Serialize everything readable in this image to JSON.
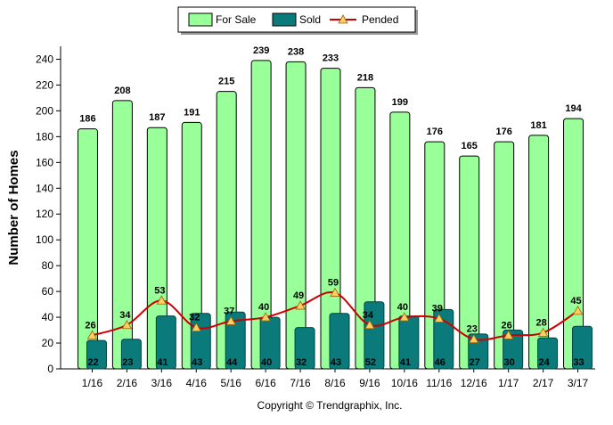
{
  "chart_data": {
    "type": "bar",
    "ylabel": "Number of Homes",
    "xlabel": "",
    "ylim": [
      0,
      250
    ],
    "yticks": [
      0,
      20,
      40,
      60,
      80,
      100,
      120,
      140,
      160,
      180,
      200,
      220,
      240
    ],
    "grid": false,
    "legend_position": "top-center",
    "categories": [
      "1/16",
      "2/16",
      "3/16",
      "4/16",
      "5/16",
      "6/16",
      "7/16",
      "8/16",
      "9/16",
      "10/16",
      "11/16",
      "12/16",
      "1/17",
      "2/17",
      "3/17"
    ],
    "series": [
      {
        "name": "For Sale",
        "kind": "bar",
        "color": "#99ff99",
        "values": [
          186,
          208,
          187,
          191,
          215,
          239,
          238,
          233,
          218,
          199,
          176,
          165,
          176,
          181,
          194
        ]
      },
      {
        "name": "Sold",
        "kind": "bar",
        "color": "#0a7a7a",
        "values": [
          22,
          23,
          41,
          43,
          44,
          40,
          32,
          43,
          52,
          41,
          46,
          27,
          30,
          24,
          33
        ]
      },
      {
        "name": "Pended",
        "kind": "line",
        "color": "#cc0000",
        "marker_color": "#ffcc66",
        "values": [
          26,
          34,
          53,
          32,
          37,
          40,
          49,
          59,
          34,
          40,
          39,
          23,
          26,
          28,
          45
        ]
      }
    ],
    "footer": "Copyright © Trendgraphix, Inc."
  }
}
